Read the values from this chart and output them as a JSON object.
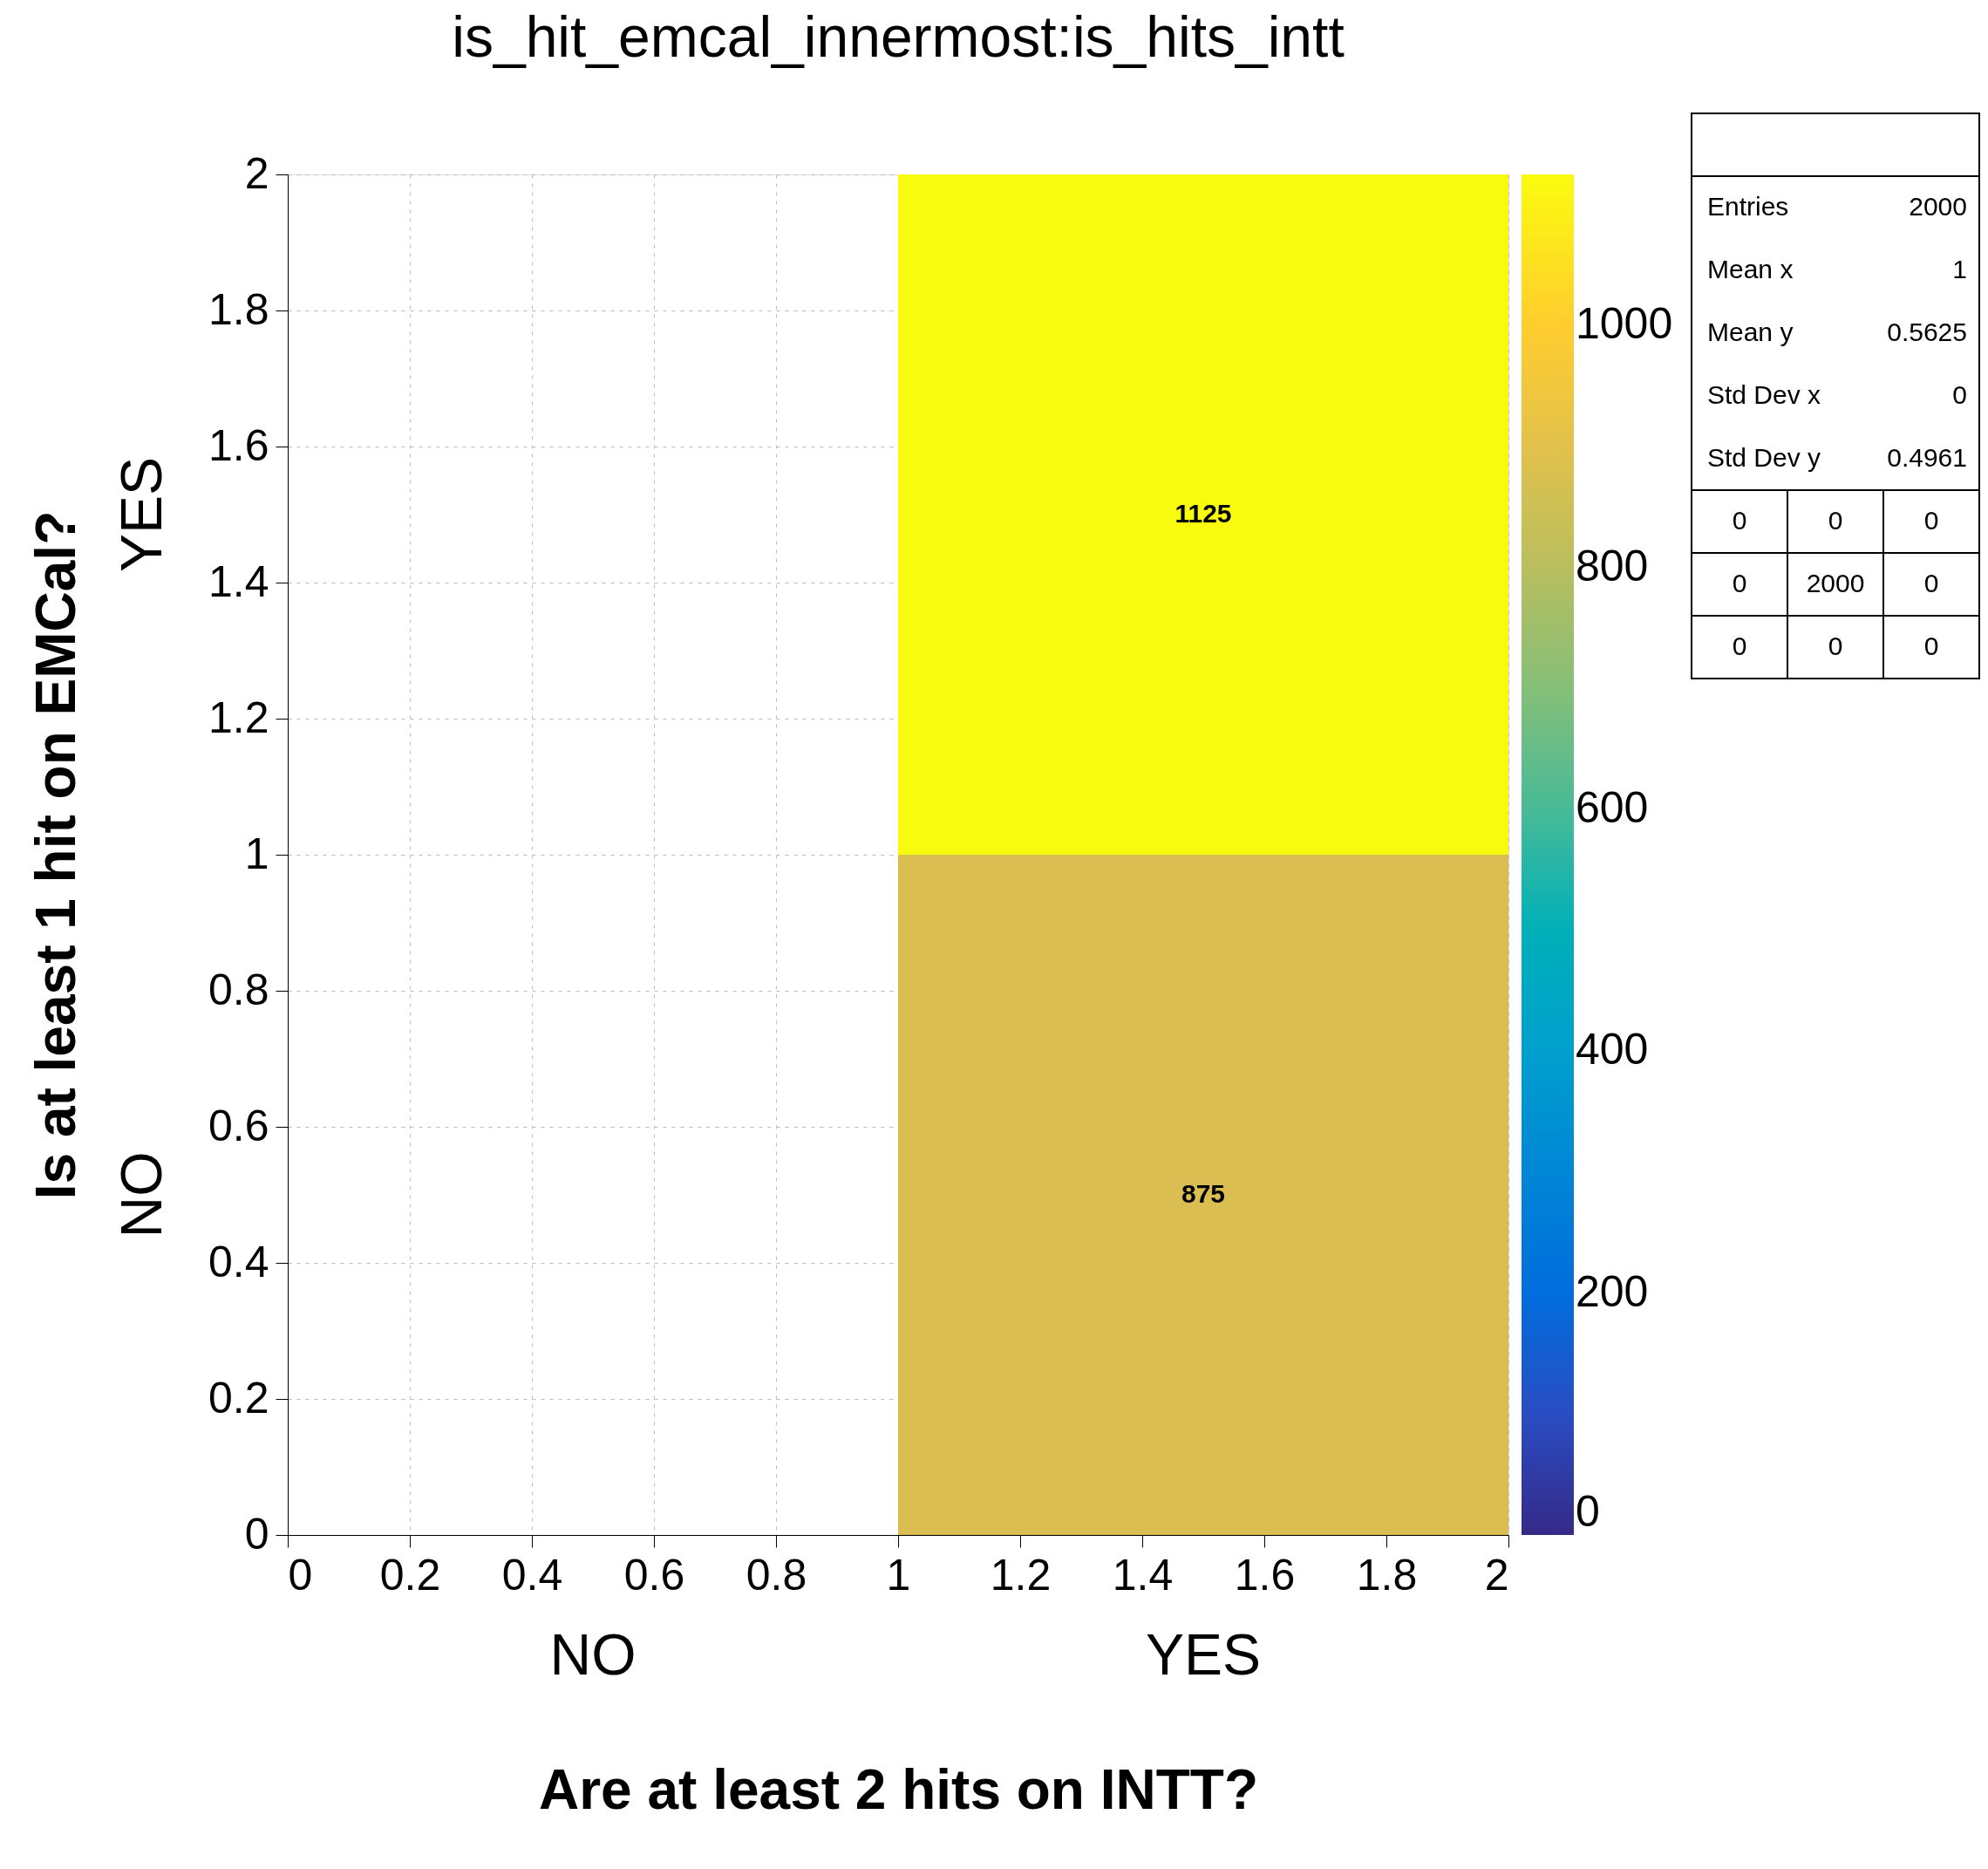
{
  "chart_data": {
    "type": "heatmap",
    "title": "is_hit_emcal_innermost:is_hits_intt",
    "xlabel": "Are at least 2 hits on INTT?",
    "ylabel": "Is at least 1 hit on EMCal?",
    "x": [
      0.5,
      1.5
    ],
    "y": [
      1.5,
      0.5
    ],
    "cells": [
      [
        null,
        1125
      ],
      [
        null,
        875
      ]
    ],
    "data_labels": true,
    "xlim": [
      0,
      2
    ],
    "xticks": [
      0,
      0.2,
      0.4,
      0.6,
      0.8,
      1,
      1.2,
      1.4,
      1.6,
      1.8,
      2
    ],
    "ylim": [
      0,
      2
    ],
    "yticks": [
      0,
      0.2,
      0.4,
      0.6,
      0.8,
      1,
      1.2,
      1.4,
      1.6,
      1.8,
      2
    ],
    "clim": [
      0,
      1125
    ],
    "cticks": [
      0,
      200,
      400,
      600,
      800,
      1000
    ],
    "grid": true,
    "annotations": [
      "NO",
      "YES",
      "YES",
      "NO",
      "Entries",
      "2000",
      "Mean x",
      "1",
      "Mean y",
      "0.5625",
      "Std Dev x",
      "0",
      "Std Dev y",
      "0.4961",
      "0",
      "0",
      "0",
      "0",
      "2000",
      "0",
      "0",
      "0",
      "0"
    ]
  }
}
